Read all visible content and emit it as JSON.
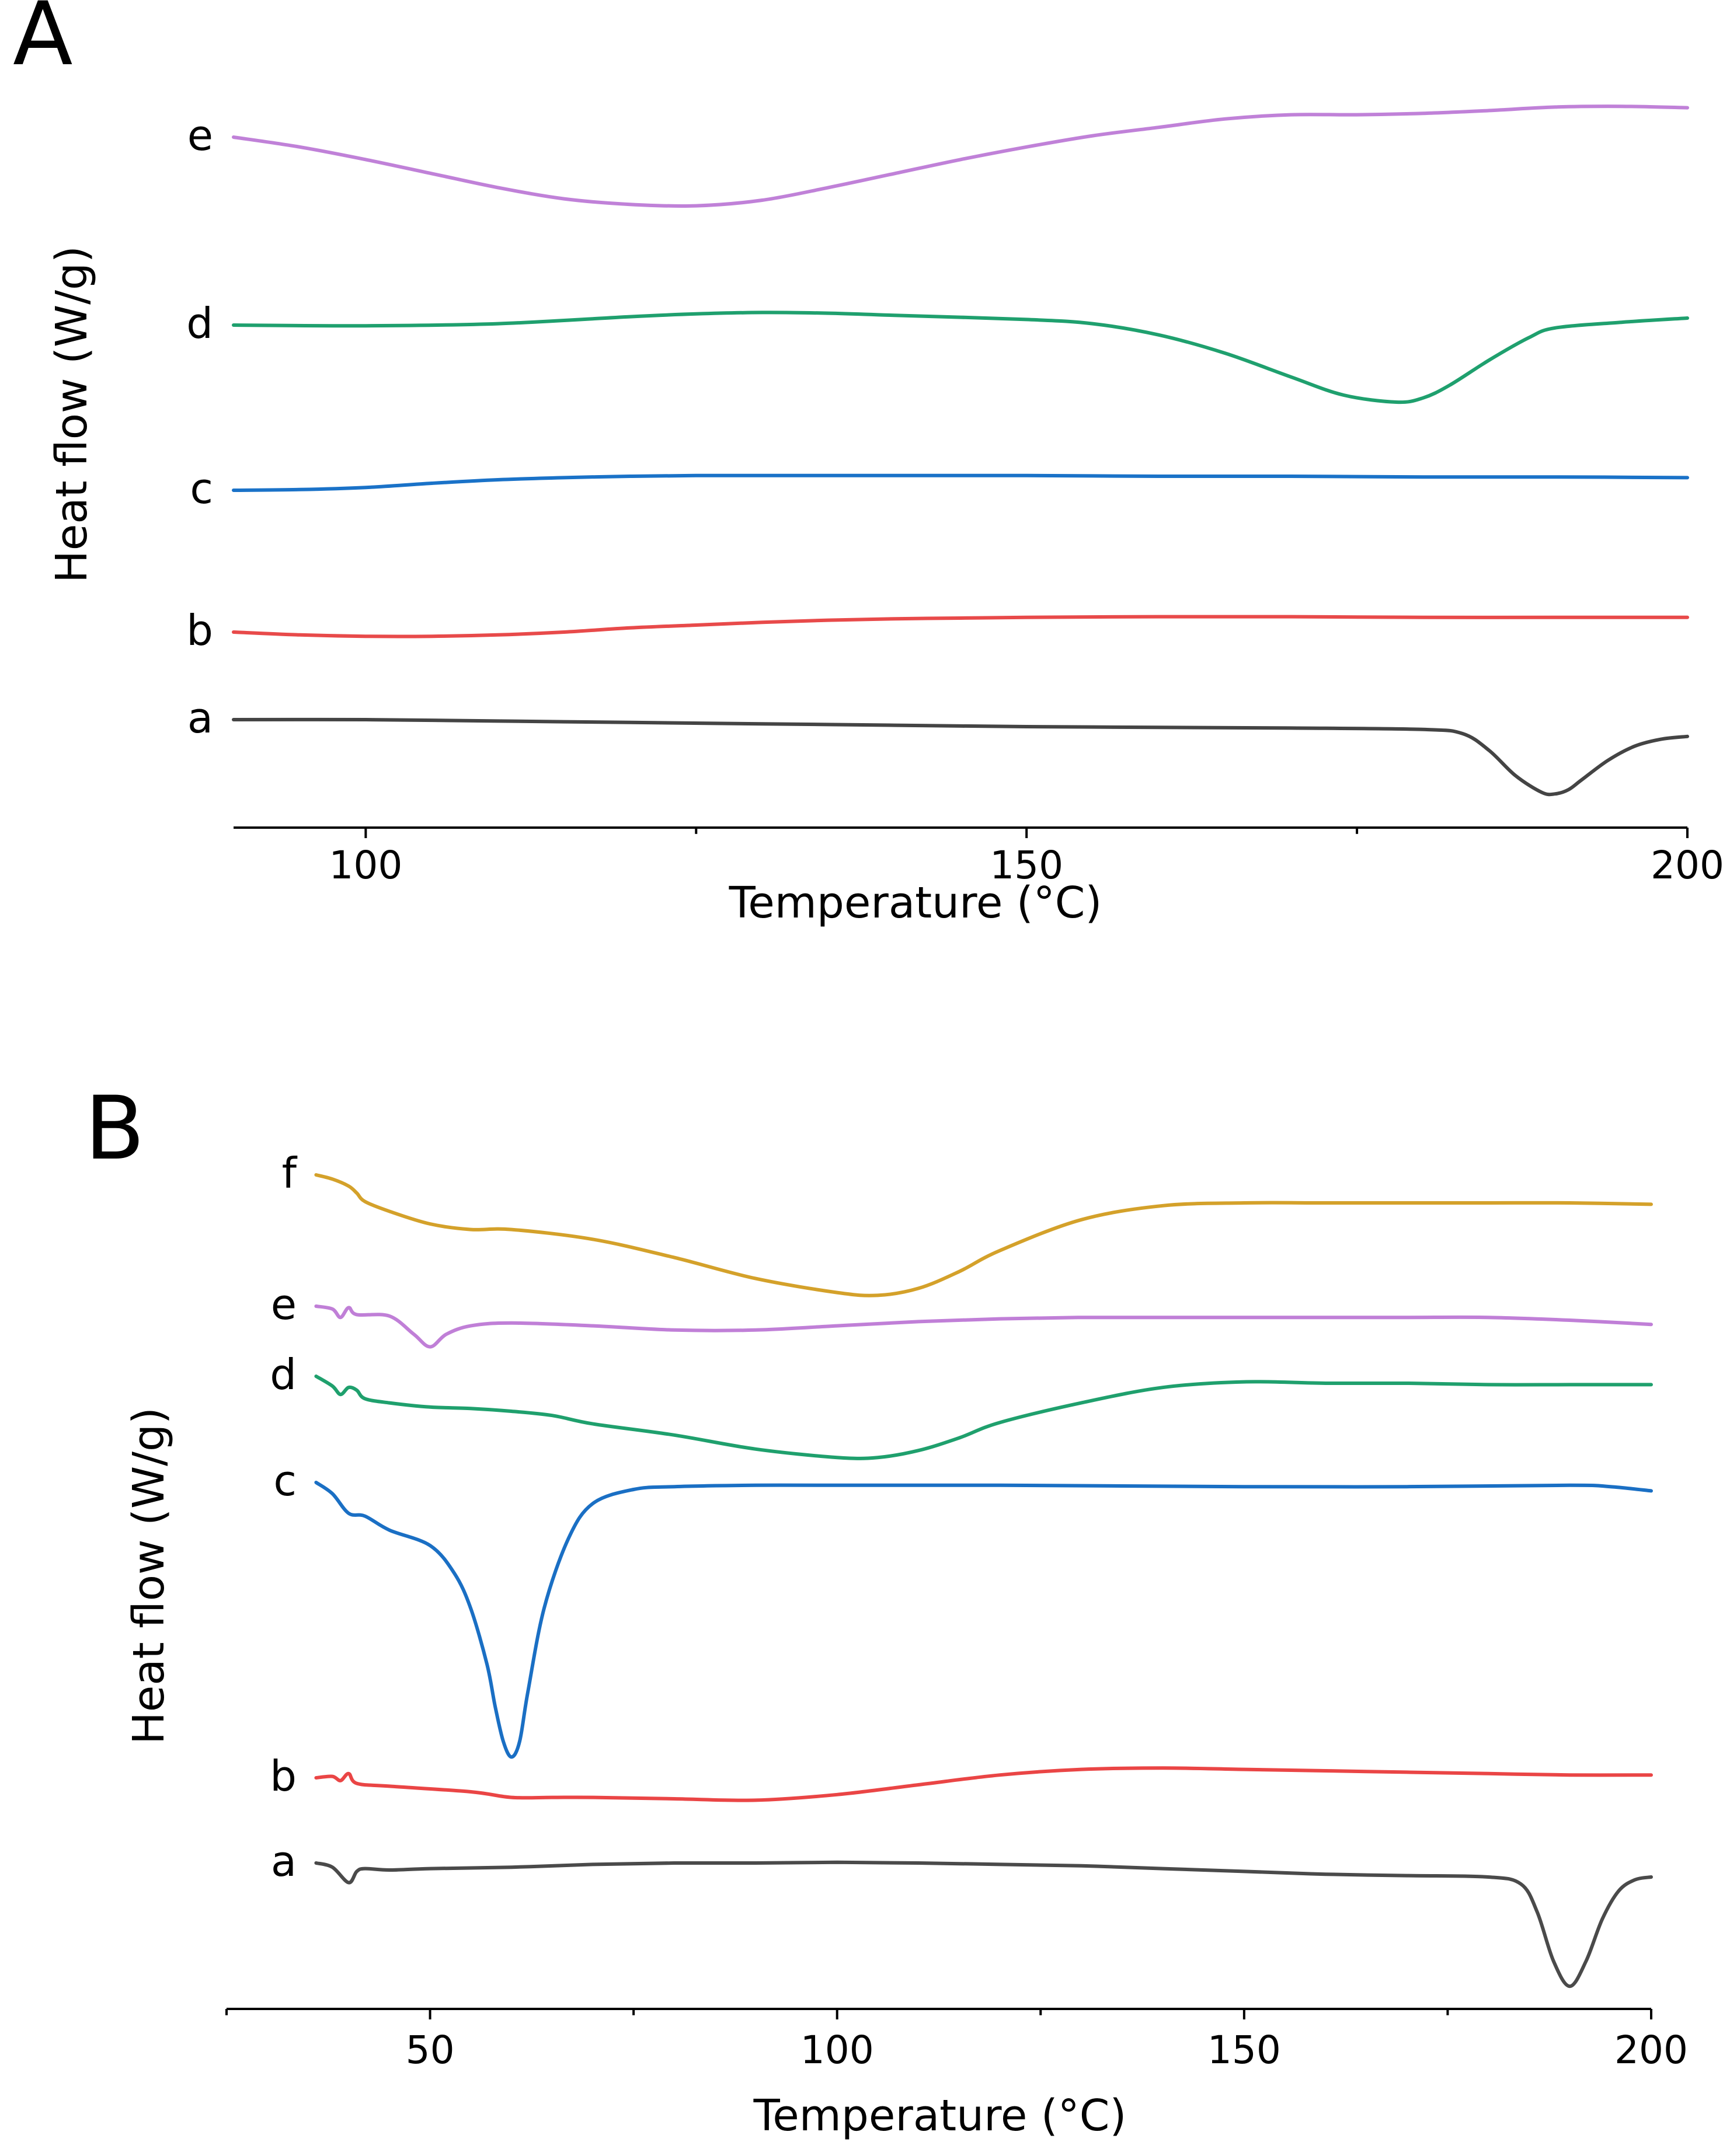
{
  "chart_data": [
    {
      "type": "line",
      "panel_label": "A",
      "title": "",
      "xlabel": "Temperature (°C)",
      "ylabel": "Heat flow (W/g)",
      "xlim": [
        90,
        200
      ],
      "xticks": [
        100,
        150,
        200
      ],
      "minor_xticks": [
        125,
        175
      ],
      "grid": false,
      "legend": "labels at left of each curve",
      "y_units": "relative offset (arbitrary)",
      "series": [
        {
          "name": "a",
          "label": "a",
          "color": "#444444",
          "x": [
            90,
            100,
            110,
            120,
            130,
            140,
            150,
            160,
            170,
            180,
            183,
            185,
            187,
            189,
            190,
            191,
            192,
            194,
            196,
            198,
            200
          ],
          "y": [
            0,
            0,
            -0.1,
            -0.2,
            -0.3,
            -0.4,
            -0.5,
            -0.55,
            -0.6,
            -0.7,
            -1.0,
            -2.2,
            -4.0,
            -5.2,
            -5.3,
            -5.0,
            -4.3,
            -2.9,
            -1.9,
            -1.4,
            -1.2
          ]
        },
        {
          "name": "b",
          "label": "b",
          "color": "#e84a4a",
          "x": [
            90,
            95,
            100,
            105,
            110,
            115,
            120,
            125,
            130,
            135,
            140,
            145,
            150,
            160,
            170,
            180,
            190,
            200
          ],
          "y": [
            0,
            -0.2,
            -0.3,
            -0.3,
            -0.2,
            0,
            0.3,
            0.5,
            0.7,
            0.85,
            0.95,
            1.0,
            1.05,
            1.1,
            1.1,
            1.05,
            1.05,
            1.05
          ]
        },
        {
          "name": "c",
          "label": "c",
          "color": "#1a72c8",
          "x": [
            90,
            95,
            100,
            105,
            110,
            115,
            120,
            125,
            130,
            140,
            150,
            160,
            170,
            180,
            190,
            200
          ],
          "y": [
            0,
            0.05,
            0.2,
            0.5,
            0.75,
            0.9,
            1.0,
            1.05,
            1.05,
            1.05,
            1.05,
            1.0,
            1.0,
            0.95,
            0.95,
            0.9
          ]
        },
        {
          "name": "d",
          "label": "d",
          "color": "#1fa06e",
          "x": [
            90,
            100,
            110,
            120,
            125,
            130,
            135,
            140,
            150,
            155,
            160,
            165,
            170,
            174,
            178,
            180,
            182,
            185,
            188,
            190,
            195,
            200
          ],
          "y": [
            0,
            -0.05,
            0.1,
            0.6,
            0.8,
            0.9,
            0.85,
            0.7,
            0.4,
            0.1,
            -0.7,
            -2.0,
            -3.7,
            -5.0,
            -5.5,
            -5.2,
            -4.3,
            -2.5,
            -0.9,
            -0.2,
            0.2,
            0.5
          ]
        },
        {
          "name": "e",
          "label": "e",
          "color": "#c081d8",
          "x": [
            90,
            95,
            100,
            105,
            110,
            115,
            120,
            125,
            130,
            135,
            140,
            145,
            150,
            155,
            160,
            165,
            170,
            175,
            180,
            185,
            190,
            195,
            200
          ],
          "y": [
            0,
            -0.7,
            -1.6,
            -2.6,
            -3.6,
            -4.4,
            -4.8,
            -4.9,
            -4.5,
            -3.6,
            -2.6,
            -1.6,
            -0.7,
            0.1,
            0.7,
            1.3,
            1.6,
            1.6,
            1.7,
            1.9,
            2.15,
            2.2,
            2.1
          ]
        }
      ]
    },
    {
      "type": "line",
      "panel_label": "B",
      "title": "",
      "xlabel": "Temperature (°C)",
      "ylabel": "Heat flow (W/g)",
      "xlim": [
        25,
        200
      ],
      "xticks": [
        50,
        100,
        150,
        200
      ],
      "minor_xticks": [
        25,
        75,
        125,
        175
      ],
      "grid": false,
      "legend": "labels at left of each curve",
      "y_units": "relative offset (arbitrary)",
      "series": [
        {
          "name": "a",
          "label": "a",
          "color": "#4a4a4a",
          "x": [
            36,
            38,
            40,
            41,
            42,
            45,
            50,
            60,
            70,
            80,
            90,
            100,
            110,
            120,
            130,
            140,
            150,
            160,
            170,
            180,
            184,
            186,
            188,
            190,
            192,
            194,
            196,
            198,
            200
          ],
          "y": [
            0,
            -0.3,
            -1.4,
            -0.6,
            -0.4,
            -0.5,
            -0.4,
            -0.3,
            -0.1,
            0,
            0,
            0.05,
            0,
            -0.1,
            -0.2,
            -0.4,
            -0.6,
            -0.8,
            -0.9,
            -1.0,
            -1.5,
            -3.5,
            -7.0,
            -8.8,
            -7.0,
            -4.0,
            -2.0,
            -1.2,
            -1.0
          ]
        },
        {
          "name": "b",
          "label": "b",
          "color": "#ea4545",
          "x": [
            36,
            38,
            39,
            40,
            41,
            45,
            55,
            60,
            65,
            70,
            80,
            90,
            100,
            110,
            120,
            130,
            140,
            150,
            160,
            170,
            180,
            190,
            200
          ],
          "y": [
            0,
            0.1,
            -0.2,
            0.3,
            -0.4,
            -0.6,
            -1.0,
            -1.4,
            -1.4,
            -1.4,
            -1.5,
            -1.6,
            -1.2,
            -0.5,
            0.2,
            0.6,
            0.7,
            0.6,
            0.5,
            0.4,
            0.3,
            0.2,
            0.2
          ]
        },
        {
          "name": "c",
          "label": "c",
          "color": "#1a6fc4",
          "x": [
            36,
            38,
            40,
            42,
            45,
            50,
            53,
            55,
            57,
            58,
            59,
            60,
            61,
            62,
            64,
            67,
            70,
            75,
            80,
            90,
            100,
            120,
            150,
            170,
            190,
            195,
            200
          ],
          "y": [
            0,
            -0.8,
            -2.2,
            -2.4,
            -3.4,
            -4.5,
            -6.5,
            -9,
            -13,
            -16,
            -18.5,
            -19.6,
            -18.5,
            -15,
            -9,
            -4,
            -1.5,
            -0.5,
            -0.3,
            -0.2,
            -0.2,
            -0.2,
            -0.3,
            -0.3,
            -0.2,
            -0.3,
            -0.6
          ]
        },
        {
          "name": "d",
          "label": "d",
          "color": "#1fa06d",
          "x": [
            36,
            38,
            39,
            40,
            41,
            42,
            45,
            50,
            55,
            60,
            65,
            70,
            80,
            90,
            100,
            105,
            110,
            115,
            120,
            130,
            140,
            150,
            160,
            170,
            180,
            190,
            200
          ],
          "y": [
            0,
            -0.7,
            -1.3,
            -0.8,
            -1.0,
            -1.6,
            -1.9,
            -2.2,
            -2.3,
            -2.5,
            -2.8,
            -3.4,
            -4.2,
            -5.2,
            -5.8,
            -5.8,
            -5.3,
            -4.4,
            -3.3,
            -1.9,
            -0.8,
            -0.4,
            -0.5,
            -0.5,
            -0.6,
            -0.6,
            -0.6
          ]
        },
        {
          "name": "e",
          "label": "e",
          "color": "#c07fd7",
          "x": [
            36,
            38,
            39,
            40,
            41,
            45,
            48,
            50,
            52,
            55,
            60,
            70,
            80,
            90,
            100,
            110,
            120,
            130,
            140,
            150,
            160,
            170,
            180,
            190,
            200
          ],
          "y": [
            0,
            -0.2,
            -0.8,
            -0.1,
            -0.6,
            -0.7,
            -2.0,
            -2.9,
            -2.0,
            -1.4,
            -1.2,
            -1.4,
            -1.7,
            -1.7,
            -1.4,
            -1.1,
            -0.9,
            -0.8,
            -0.8,
            -0.8,
            -0.8,
            -0.8,
            -0.8,
            -1.0,
            -1.3
          ]
        },
        {
          "name": "f",
          "label": "f",
          "color": "#d4a12a",
          "x": [
            36,
            38,
            40,
            41,
            42,
            45,
            50,
            55,
            60,
            70,
            80,
            90,
            100,
            105,
            110,
            115,
            120,
            130,
            140,
            150,
            160,
            170,
            180,
            190,
            200
          ],
          "y": [
            0,
            -0.3,
            -0.8,
            -1.3,
            -1.9,
            -2.6,
            -3.5,
            -3.9,
            -3.9,
            -4.6,
            -5.9,
            -7.4,
            -8.4,
            -8.6,
            -8.1,
            -6.9,
            -5.4,
            -3.2,
            -2.2,
            -2.0,
            -2.0,
            -2.0,
            -2.0,
            -2.0,
            -2.1
          ]
        }
      ]
    }
  ]
}
